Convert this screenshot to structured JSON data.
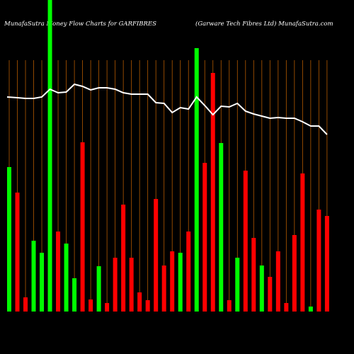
{
  "chart_data": {
    "type": "bar",
    "title": "MunafaSutra  Money Flow  Charts for GARFIBRES",
    "subtitle": "(Garware    Tech Fibres Ltd) MunafaSutra.com",
    "categories": [
      null,
      null,
      null,
      null,
      null,
      null,
      null,
      null,
      null,
      null,
      null,
      null,
      null,
      null,
      null,
      null,
      null,
      null,
      null,
      null,
      null,
      null,
      null,
      null,
      null,
      null,
      null,
      null,
      null,
      null,
      null,
      null,
      null,
      null,
      null,
      null,
      null,
      null,
      null,
      null
    ],
    "values": [
      204,
      168,
      20,
      100,
      83,
      440,
      113,
      96,
      47,
      239,
      17,
      64,
      12,
      76,
      151,
      76,
      27,
      16,
      159,
      65,
      85,
      83,
      113,
      372,
      210,
      337,
      238,
      16,
      76,
      199,
      104,
      65,
      49,
      85,
      12,
      108,
      195,
      7,
      144,
      135
    ],
    "colors": [
      "#00ff00",
      "#ff0000",
      "#ff0000",
      "#00ff00",
      "#00ff00",
      "#00ff00",
      "#ff0000",
      "#00ff00",
      "#00ff00",
      "#ff0000",
      "#ff0000",
      "#00ff00",
      "#ff0000",
      "#ff0000",
      "#ff0000",
      "#ff0000",
      "#ff0000",
      "#ff0000",
      "#ff0000",
      "#ff0000",
      "#ff0000",
      "#00ff00",
      "#ff0000",
      "#00ff00",
      "#ff0000",
      "#ff0000",
      "#00ff00",
      "#ff0000",
      "#00ff00",
      "#ff0000",
      "#ff0000",
      "#00ff00",
      "#ff0000",
      "#ff0000",
      "#ff0000",
      "#ff0000",
      "#ff0000",
      "#00ff00",
      "#ff0000",
      "#ff0000"
    ],
    "line": {
      "color": "#ffffff",
      "values": [
        303,
        302,
        301,
        301,
        303,
        314,
        309,
        310,
        321,
        318,
        313,
        316,
        316,
        314,
        309,
        307,
        307,
        307,
        295,
        294,
        281,
        288,
        286,
        303,
        291,
        278,
        290,
        289,
        294,
        283,
        279,
        276,
        273,
        274,
        273,
        273,
        268,
        262,
        262,
        250
      ]
    },
    "grid_color": "#b35900"
  }
}
